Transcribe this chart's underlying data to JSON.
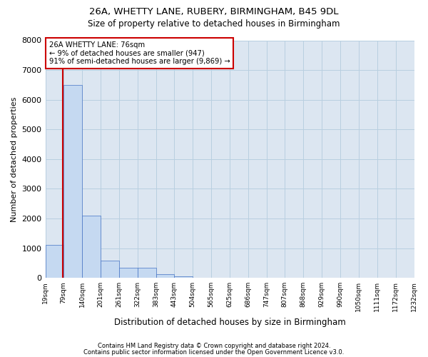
{
  "title1": "26A, WHETTY LANE, RUBERY, BIRMINGHAM, B45 9DL",
  "title2": "Size of property relative to detached houses in Birmingham",
  "xlabel": "Distribution of detached houses by size in Birmingham",
  "ylabel": "Number of detached properties",
  "footnote1": "Contains HM Land Registry data © Crown copyright and database right 2024.",
  "footnote2": "Contains public sector information licensed under the Open Government Licence v3.0.",
  "annotation_line1": "26A WHETTY LANE: 76sqm",
  "annotation_line2": "← 9% of detached houses are smaller (947)",
  "annotation_line3": "91% of semi-detached houses are larger (9,869) →",
  "property_size": 76,
  "bin_edges": [
    19,
    79,
    140,
    201,
    261,
    322,
    383,
    443,
    504,
    565,
    625,
    686,
    747,
    807,
    868,
    929,
    990,
    1050,
    1111,
    1172,
    1232
  ],
  "bar_heights": [
    1100,
    6500,
    2100,
    580,
    340,
    340,
    120,
    55,
    8,
    0,
    8,
    0,
    0,
    0,
    0,
    0,
    0,
    0,
    0,
    0
  ],
  "bar_color": "#c5d9f1",
  "bar_edge_color": "#4472c4",
  "grid_color": "#b8cfe0",
  "background_color": "#dce6f1",
  "vline_color": "#cc0000",
  "annotation_box_color": "#cc0000",
  "ylim": [
    0,
    8000
  ],
  "yticks": [
    0,
    1000,
    2000,
    3000,
    4000,
    5000,
    6000,
    7000,
    8000
  ]
}
